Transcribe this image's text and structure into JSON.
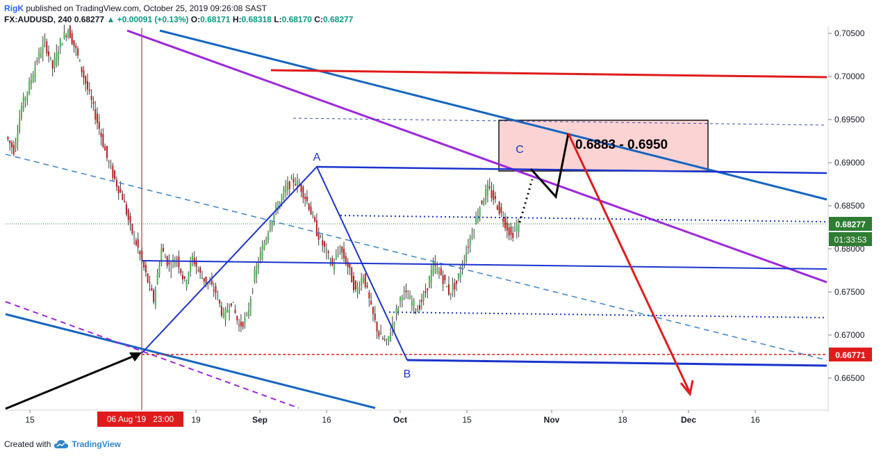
{
  "header": {
    "author": "RigK",
    "published_text": " published on TradingView.com, October 25, 2019 09:26:08 SAST",
    "symbol": "FX:AUDUSD, 240",
    "last": "0.68277",
    "change": "▲ +0.00091 (+0.13%)",
    "o_label": "O:",
    "o_val": "0.68171",
    "h_label": "H:",
    "h_val": "0.68318",
    "l_label": "L:",
    "l_val": "0.68170",
    "c_label": "C:",
    "c_val": "0.68277"
  },
  "footer": {
    "created_with": "Created with",
    "brand": "TradingView"
  },
  "colors": {
    "up": "#089981",
    "down": "#f23645",
    "candle": "#3a3a3a",
    "blue_line": "#1565c0",
    "purple_line": "#9c27d9",
    "red_line": "#e01b1b",
    "price_tag": "#2e7d32",
    "level_tag": "#e01b1b",
    "zone_fill": "#fbd3d3"
  },
  "chart_data": {
    "type": "candlestick",
    "symbol": "FX:AUDUSD",
    "timeframe": "240",
    "y_axis_ticks": [
      "0.70500",
      "0.70000",
      "0.69500",
      "0.69000",
      "0.68500",
      "0.68000",
      "0.67500",
      "0.67000",
      "0.66500"
    ],
    "ylim": [
      0.6625,
      0.706
    ],
    "x_axis_ticks": [
      "15",
      "19",
      "Sep",
      "16",
      "Oct",
      "15",
      "Nov",
      "18",
      "Dec",
      "16"
    ],
    "price_tag": "0.68277",
    "countdown": "01:33:53",
    "level_tag": "0.66771",
    "date_marker": "06 Aug '19   23:00",
    "zone_label": "0.6883 - 0.6950",
    "zone_low": 0.6883,
    "zone_high": 0.695,
    "wave_labels": [
      "A",
      "B",
      "C"
    ],
    "annotations": {
      "A": {
        "date": "2019-09-13",
        "price": 0.6895
      },
      "B": {
        "date": "2019-10-02",
        "price": 0.6671
      },
      "C": {
        "date": "2019-10-25",
        "price": 0.6905
      }
    },
    "price_path": [
      [
        0.693,
        0.6945,
        0.6905,
        0.6915
      ],
      [
        0.6915,
        0.697,
        0.6912,
        0.6965
      ],
      [
        0.6965,
        0.7,
        0.695,
        0.699
      ],
      [
        0.699,
        0.703,
        0.698,
        0.702
      ],
      [
        0.702,
        0.705,
        0.7005,
        0.704
      ],
      [
        0.704,
        0.7045,
        0.7,
        0.701
      ],
      [
        0.701,
        0.7045,
        0.7,
        0.704
      ],
      [
        0.704,
        0.7065,
        0.703,
        0.7055
      ],
      [
        0.7055,
        0.706,
        0.702,
        0.703
      ],
      [
        0.703,
        0.704,
        0.699,
        0.7
      ],
      [
        0.7,
        0.701,
        0.696,
        0.697
      ],
      [
        0.697,
        0.698,
        0.693,
        0.694
      ],
      [
        0.694,
        0.695,
        0.69,
        0.6905
      ],
      [
        0.6905,
        0.6915,
        0.687,
        0.688
      ],
      [
        0.688,
        0.689,
        0.685,
        0.686
      ],
      [
        0.686,
        0.687,
        0.682,
        0.6825
      ],
      [
        0.6825,
        0.683,
        0.679,
        0.68
      ],
      [
        0.68,
        0.681,
        0.676,
        0.677
      ],
      [
        0.677,
        0.6785,
        0.669,
        0.674
      ],
      [
        0.674,
        0.681,
        0.673,
        0.68
      ],
      [
        0.68,
        0.682,
        0.676,
        0.678
      ],
      [
        0.678,
        0.681,
        0.675,
        0.679
      ],
      [
        0.679,
        0.68,
        0.674,
        0.676
      ],
      [
        0.676,
        0.68,
        0.674,
        0.679
      ],
      [
        0.679,
        0.6805,
        0.675,
        0.677
      ],
      [
        0.677,
        0.679,
        0.674,
        0.676
      ],
      [
        0.676,
        0.679,
        0.669,
        0.675
      ],
      [
        0.675,
        0.677,
        0.67,
        0.672
      ],
      [
        0.672,
        0.676,
        0.671,
        0.674
      ],
      [
        0.674,
        0.675,
        0.669,
        0.671
      ],
      [
        0.671,
        0.673,
        0.669,
        0.672
      ],
      [
        0.672,
        0.678,
        0.6715,
        0.677
      ],
      [
        0.677,
        0.681,
        0.676,
        0.68
      ],
      [
        0.68,
        0.684,
        0.679,
        0.683
      ],
      [
        0.683,
        0.686,
        0.682,
        0.685
      ],
      [
        0.685,
        0.688,
        0.684,
        0.687
      ],
      [
        0.687,
        0.689,
        0.685,
        0.688
      ],
      [
        0.688,
        0.6895,
        0.686,
        0.687
      ],
      [
        0.687,
        0.6885,
        0.684,
        0.685
      ],
      [
        0.685,
        0.686,
        0.681,
        0.682
      ],
      [
        0.682,
        0.683,
        0.679,
        0.68
      ],
      [
        0.68,
        0.681,
        0.677,
        0.678
      ],
      [
        0.678,
        0.681,
        0.677,
        0.68
      ],
      [
        0.68,
        0.6815,
        0.677,
        0.678
      ],
      [
        0.678,
        0.679,
        0.674,
        0.675
      ],
      [
        0.675,
        0.678,
        0.674,
        0.677
      ],
      [
        0.677,
        0.678,
        0.672,
        0.673
      ],
      [
        0.673,
        0.674,
        0.669,
        0.67
      ],
      [
        0.67,
        0.672,
        0.6671,
        0.669
      ],
      [
        0.669,
        0.673,
        0.668,
        0.672
      ],
      [
        0.672,
        0.676,
        0.671,
        0.675
      ],
      [
        0.675,
        0.677,
        0.672,
        0.674
      ],
      [
        0.674,
        0.676,
        0.671,
        0.673
      ],
      [
        0.673,
        0.676,
        0.6715,
        0.675
      ],
      [
        0.675,
        0.679,
        0.674,
        0.678
      ],
      [
        0.678,
        0.681,
        0.676,
        0.677
      ],
      [
        0.677,
        0.679,
        0.674,
        0.675
      ],
      [
        0.675,
        0.677,
        0.672,
        0.676
      ],
      [
        0.676,
        0.68,
        0.6755,
        0.679
      ],
      [
        0.679,
        0.683,
        0.678,
        0.682
      ],
      [
        0.682,
        0.686,
        0.681,
        0.685
      ],
      [
        0.685,
        0.688,
        0.684,
        0.687
      ],
      [
        0.687,
        0.6885,
        0.6845,
        0.6855
      ],
      [
        0.6855,
        0.6865,
        0.6825,
        0.6835
      ],
      [
        0.6835,
        0.6845,
        0.681,
        0.6815
      ],
      [
        0.6815,
        0.6835,
        0.6805,
        0.6828
      ]
    ],
    "lines": [
      {
        "color": "blue",
        "style": "solid",
        "desc": "upper descending channel"
      },
      {
        "color": "blue",
        "style": "solid",
        "desc": "lower descending channel"
      },
      {
        "color": "purple",
        "style": "solid",
        "desc": "descending trendline"
      },
      {
        "color": "purple",
        "style": "dashed",
        "desc": "parallel trendline"
      },
      {
        "color": "red",
        "style": "solid",
        "desc": "resistance near 0.7000"
      },
      {
        "color": "red",
        "style": "dashed",
        "desc": "support at 0.66771"
      },
      {
        "color": "red",
        "style": "solid",
        "desc": "projected drop arrow"
      }
    ]
  }
}
